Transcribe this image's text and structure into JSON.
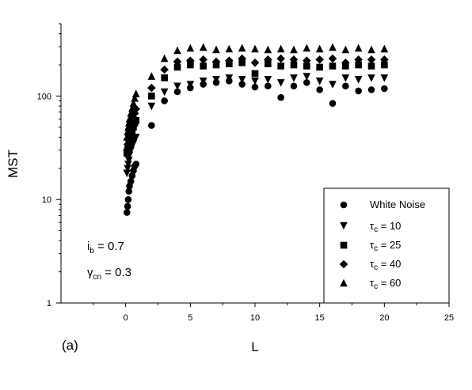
{
  "chart_data": {
    "type": "scatter",
    "title": "",
    "panel_label": "(a)",
    "xlabel": "L",
    "ylabel": "MST",
    "xlim": [
      -5,
      25
    ],
    "ylim": [
      1,
      500
    ],
    "yscale": "log",
    "grid": false,
    "legend_placement": "bottom-right",
    "x_ticks": [
      "0",
      "5",
      "10",
      "15",
      "20",
      "25"
    ],
    "y_ticks": [
      "1",
      "10",
      "100"
    ],
    "annotations": [
      {
        "text": "i",
        "sub": "b",
        "rest": " = 0.7"
      },
      {
        "text": "γ",
        "sub": "cn",
        "rest": " = 0.3"
      }
    ],
    "series": [
      {
        "name": "White Noise",
        "legend_text": "White Noise",
        "marker": "circle",
        "points": [
          [
            0.1,
            7.5
          ],
          [
            0.15,
            8.6
          ],
          [
            0.2,
            10
          ],
          [
            0.25,
            12
          ],
          [
            0.3,
            13.5
          ],
          [
            0.4,
            15
          ],
          [
            0.5,
            17
          ],
          [
            0.6,
            19
          ],
          [
            0.7,
            21
          ],
          [
            0.8,
            22
          ],
          [
            2,
            52
          ],
          [
            3,
            90
          ],
          [
            4,
            110
          ],
          [
            5,
            120
          ],
          [
            6,
            130
          ],
          [
            7,
            135
          ],
          [
            8,
            140
          ],
          [
            9,
            130
          ],
          [
            10,
            122
          ],
          [
            11,
            125
          ],
          [
            12,
            97
          ],
          [
            13,
            125
          ],
          [
            14,
            135
          ],
          [
            15,
            115
          ],
          [
            16,
            85
          ],
          [
            17,
            125
          ],
          [
            18,
            112
          ],
          [
            19,
            115
          ],
          [
            20,
            118
          ]
        ]
      },
      {
        "name": "τc = 10",
        "legend_symbol": "τ",
        "legend_sub": "c",
        "legend_rest": " = 10",
        "marker": "triangle-down",
        "points": [
          [
            0.1,
            18
          ],
          [
            0.15,
            20
          ],
          [
            0.2,
            22
          ],
          [
            0.25,
            24
          ],
          [
            0.3,
            27
          ],
          [
            0.4,
            30
          ],
          [
            0.5,
            33
          ],
          [
            0.6,
            35
          ],
          [
            0.7,
            38
          ],
          [
            0.8,
            40
          ],
          [
            2,
            80
          ],
          [
            3,
            110
          ],
          [
            4,
            125
          ],
          [
            5,
            130
          ],
          [
            6,
            140
          ],
          [
            7,
            145
          ],
          [
            8,
            150
          ],
          [
            9,
            145
          ],
          [
            10,
            140
          ],
          [
            11,
            145
          ],
          [
            12,
            135
          ],
          [
            13,
            150
          ],
          [
            14,
            155
          ],
          [
            15,
            140
          ],
          [
            16,
            130
          ],
          [
            17,
            150
          ],
          [
            18,
            145
          ],
          [
            19,
            150
          ],
          [
            20,
            150
          ]
        ]
      },
      {
        "name": "τc = 25",
        "legend_symbol": "τ",
        "legend_sub": "c",
        "legend_rest": " = 25",
        "marker": "square",
        "points": [
          [
            0.1,
            28
          ],
          [
            0.15,
            30
          ],
          [
            0.2,
            32
          ],
          [
            0.25,
            35
          ],
          [
            0.3,
            38
          ],
          [
            0.4,
            42
          ],
          [
            0.5,
            46
          ],
          [
            0.6,
            50
          ],
          [
            0.7,
            55
          ],
          [
            0.8,
            58
          ],
          [
            2,
            100
          ],
          [
            3,
            150
          ],
          [
            4,
            190
          ],
          [
            5,
            200
          ],
          [
            6,
            195
          ],
          [
            7,
            200
          ],
          [
            8,
            205
          ],
          [
            9,
            210
          ],
          [
            10,
            165
          ],
          [
            11,
            205
          ],
          [
            12,
            195
          ],
          [
            13,
            200
          ],
          [
            14,
            195
          ],
          [
            15,
            190
          ],
          [
            16,
            195
          ],
          [
            17,
            195
          ],
          [
            18,
            200
          ],
          [
            19,
            195
          ],
          [
            20,
            200
          ]
        ]
      },
      {
        "name": "τc = 40",
        "legend_symbol": "τ",
        "legend_sub": "c",
        "legend_rest": " = 40",
        "marker": "diamond",
        "points": [
          [
            0.1,
            30
          ],
          [
            0.15,
            34
          ],
          [
            0.2,
            38
          ],
          [
            0.25,
            42
          ],
          [
            0.3,
            46
          ],
          [
            0.4,
            50
          ],
          [
            0.5,
            56
          ],
          [
            0.6,
            62
          ],
          [
            0.7,
            68
          ],
          [
            0.8,
            75
          ],
          [
            2,
            120
          ],
          [
            3,
            180
          ],
          [
            4,
            215
          ],
          [
            5,
            220
          ],
          [
            6,
            225
          ],
          [
            7,
            215
          ],
          [
            8,
            220
          ],
          [
            9,
            230
          ],
          [
            10,
            210
          ],
          [
            11,
            225
          ],
          [
            12,
            230
          ],
          [
            13,
            225
          ],
          [
            14,
            220
          ],
          [
            15,
            225
          ],
          [
            16,
            230
          ],
          [
            17,
            210
          ],
          [
            18,
            225
          ],
          [
            19,
            225
          ],
          [
            20,
            225
          ]
        ]
      },
      {
        "name": "τc = 60",
        "legend_symbol": "τ",
        "legend_sub": "c",
        "legend_rest": " = 60",
        "marker": "triangle-up",
        "points": [
          [
            0.1,
            40
          ],
          [
            0.15,
            45
          ],
          [
            0.2,
            50
          ],
          [
            0.25,
            55
          ],
          [
            0.3,
            60
          ],
          [
            0.4,
            68
          ],
          [
            0.5,
            76
          ],
          [
            0.6,
            85
          ],
          [
            0.7,
            95
          ],
          [
            0.8,
            105
          ],
          [
            2,
            155
          ],
          [
            3,
            230
          ],
          [
            4,
            275
          ],
          [
            5,
            290
          ],
          [
            6,
            295
          ],
          [
            7,
            280
          ],
          [
            8,
            285
          ],
          [
            9,
            290
          ],
          [
            10,
            285
          ],
          [
            11,
            280
          ],
          [
            12,
            285
          ],
          [
            13,
            280
          ],
          [
            14,
            290
          ],
          [
            15,
            285
          ],
          [
            16,
            295
          ],
          [
            17,
            280
          ],
          [
            18,
            290
          ],
          [
            19,
            280
          ],
          [
            20,
            285
          ]
        ]
      }
    ]
  }
}
